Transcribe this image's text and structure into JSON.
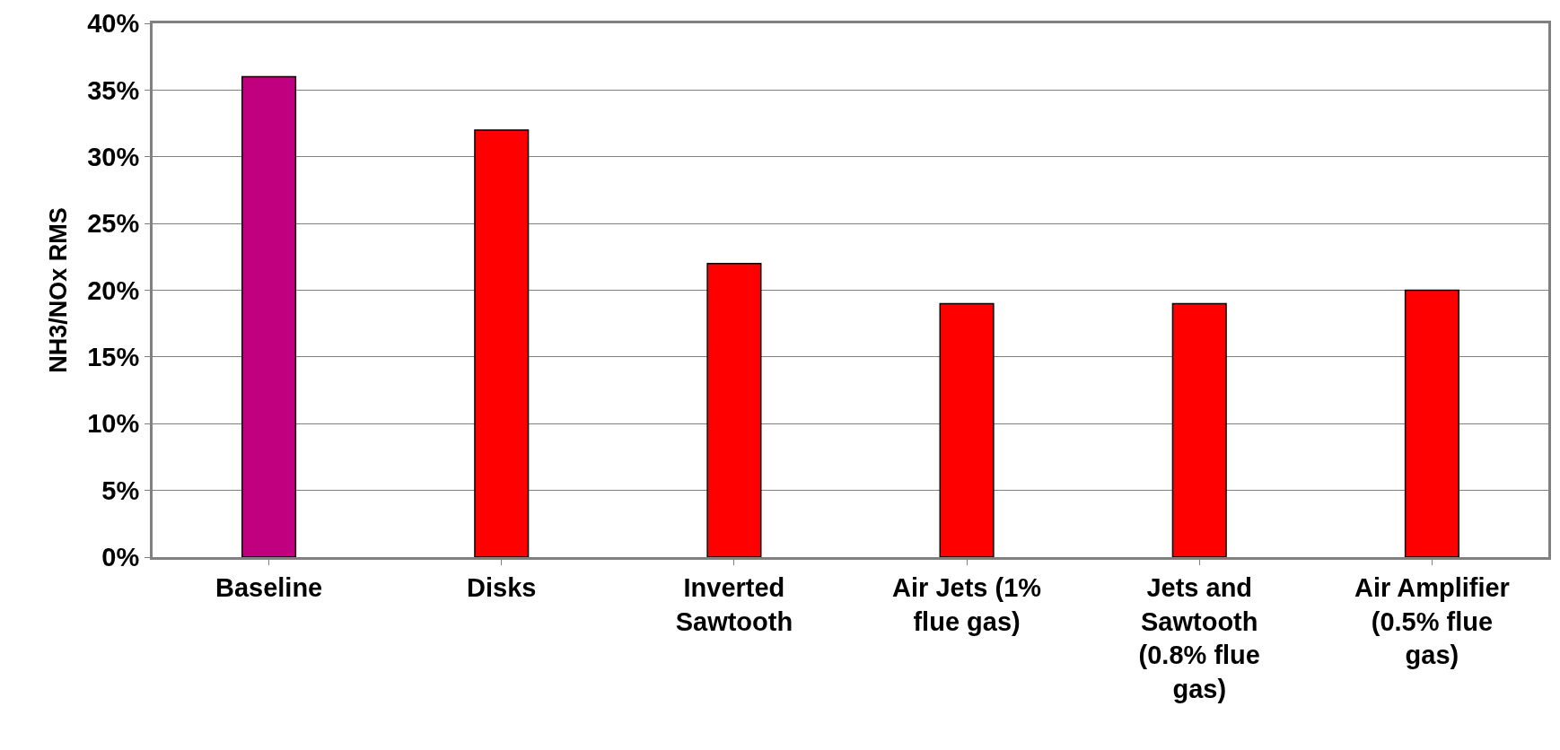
{
  "chart_data": {
    "type": "bar",
    "ylabel": "NH3/NOx RMS",
    "categories": [
      "Baseline",
      "Disks",
      "Inverted Sawtooth",
      "Air Jets (1% flue gas)",
      "Jets and Sawtooth (0.8% flue gas)",
      "Air Amplifier (0.5% flue gas)"
    ],
    "values": [
      36,
      32,
      22,
      19,
      19,
      20
    ],
    "colors": [
      "#c0007f",
      "#ff0000",
      "#ff0000",
      "#ff0000",
      "#ff0000",
      "#ff0000"
    ],
    "ylim": [
      0,
      40
    ],
    "yticks": [
      {
        "value": 0,
        "label": "0%"
      },
      {
        "value": 5,
        "label": "5%"
      },
      {
        "value": 10,
        "label": "10%"
      },
      {
        "value": 15,
        "label": "15%"
      },
      {
        "value": 20,
        "label": "20%"
      },
      {
        "value": 25,
        "label": "25%"
      },
      {
        "value": 30,
        "label": "30%"
      },
      {
        "value": 35,
        "label": "35%"
      },
      {
        "value": 40,
        "label": "40%"
      }
    ],
    "grid": "y",
    "legend": false
  }
}
